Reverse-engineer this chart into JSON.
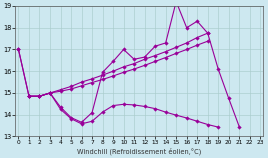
{
  "xlabel": "Windchill (Refroidissement éolien,°C)",
  "bg_color": "#cde8f0",
  "line_color": "#990099",
  "grid_color": "#aacccc",
  "yticks": [
    13,
    14,
    15,
    16,
    17,
    18,
    19
  ],
  "xticks": [
    0,
    1,
    2,
    3,
    4,
    5,
    6,
    7,
    8,
    9,
    10,
    11,
    12,
    13,
    14,
    15,
    16,
    17,
    18,
    19,
    20,
    21,
    22,
    23
  ],
  "ylim": [
    13,
    19
  ],
  "xlim": [
    -0.3,
    23.3
  ],
  "line1_x": [
    0,
    1,
    2,
    3,
    4,
    5,
    6,
    7,
    8,
    9,
    10,
    11,
    12,
    13,
    14,
    15,
    16,
    17,
    18,
    19,
    20,
    21
  ],
  "line1_y": [
    17.0,
    14.85,
    14.85,
    15.0,
    14.35,
    13.87,
    13.65,
    14.1,
    15.95,
    16.45,
    17.0,
    16.55,
    16.65,
    17.15,
    17.3,
    19.2,
    18.0,
    18.3,
    17.75,
    16.1,
    14.75,
    13.45
  ],
  "line2_x": [
    1,
    2,
    3,
    4,
    5,
    6,
    7,
    8,
    9,
    10,
    11,
    12,
    13,
    14,
    15,
    16,
    17,
    18
  ],
  "line2_y": [
    14.85,
    14.85,
    15.0,
    15.15,
    15.3,
    15.5,
    15.65,
    15.82,
    16.0,
    16.2,
    16.35,
    16.55,
    16.72,
    16.9,
    17.1,
    17.3,
    17.55,
    17.75
  ],
  "line3_x": [
    1,
    2,
    3,
    4,
    5,
    6,
    7,
    8,
    9,
    10,
    11,
    12,
    13,
    14,
    15,
    16,
    17,
    18
  ],
  "line3_y": [
    14.85,
    14.85,
    15.0,
    15.08,
    15.18,
    15.33,
    15.48,
    15.62,
    15.78,
    15.95,
    16.1,
    16.27,
    16.45,
    16.63,
    16.82,
    17.0,
    17.2,
    17.38
  ],
  "line4_x": [
    0,
    1,
    2,
    3,
    4,
    5,
    6,
    7,
    8,
    9,
    10,
    11,
    12,
    13,
    14,
    15,
    16,
    17,
    18,
    19,
    20,
    21
  ],
  "line4_y": [
    17.0,
    14.85,
    14.85,
    15.0,
    14.25,
    13.82,
    13.58,
    13.7,
    14.12,
    14.42,
    14.48,
    14.45,
    14.38,
    14.28,
    14.12,
    13.98,
    13.85,
    13.7,
    13.55,
    13.43,
    null,
    null
  ]
}
